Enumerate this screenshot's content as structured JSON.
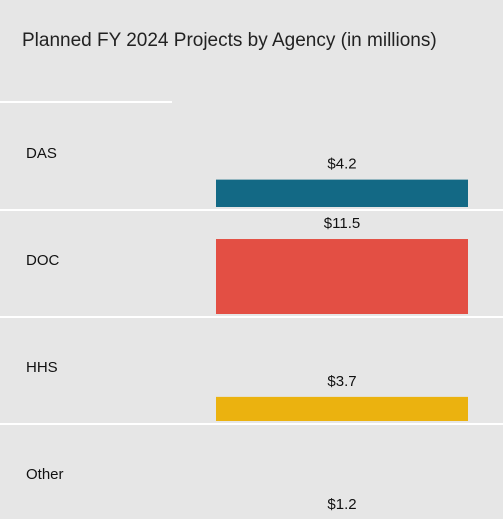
{
  "chart_data": {
    "type": "bar",
    "title": "Planned FY 2024 Projects by Agency (in millions)",
    "categories": [
      "DAS",
      "DOC",
      "HHS",
      "Other"
    ],
    "values": [
      4.2,
      11.5,
      3.7,
      1.2
    ],
    "value_labels": [
      "$4.2",
      "$11.5",
      "$3.7",
      "$1.2"
    ],
    "colors": [
      "#136985",
      "#e34f44",
      "#ebb20f",
      "#3d9c8f"
    ]
  }
}
